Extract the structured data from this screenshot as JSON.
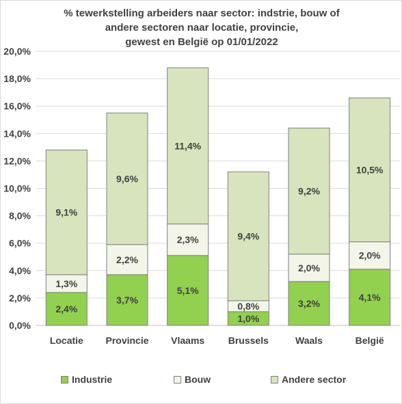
{
  "chart_data": {
    "type": "bar",
    "stacked": true,
    "title_lines": [
      "% tewerkstelling arbeiders naar sector: indstrie, bouw of",
      "andere sectoren naar locatie, provincie,",
      "gewest en België op 01/01/2022"
    ],
    "categories": [
      "Locatie",
      "Provincie",
      "Vlaams",
      "Brussels",
      "Waals",
      "België"
    ],
    "series": [
      {
        "name": "Industrie",
        "values": [
          2.4,
          3.7,
          5.1,
          1.0,
          3.2,
          4.1
        ],
        "labels": [
          "2,4%",
          "3,7%",
          "5,1%",
          "1,0%",
          "3,2%",
          "4,1%"
        ],
        "color": "#92d050",
        "label_color": "#404040"
      },
      {
        "name": "Bouw",
        "values": [
          1.3,
          2.2,
          2.3,
          0.8,
          2.0,
          2.0
        ],
        "labels": [
          "1,3%",
          "2,2%",
          "2,3%",
          "0,8%",
          "2,0%",
          "2,0%"
        ],
        "color": "#f2f5e8",
        "label_color": "#404040"
      },
      {
        "name": "Andere sector",
        "values": [
          9.1,
          9.6,
          11.4,
          9.4,
          9.2,
          10.5
        ],
        "labels": [
          "9,1%",
          "9,6%",
          "11,4%",
          "9,4%",
          "9,2%",
          "10,5%"
        ],
        "color": "#d7e4bd",
        "label_color": "#404040"
      }
    ],
    "y_axis": {
      "min": 0,
      "max": 20,
      "step": 2,
      "tick_labels": [
        "0,0%",
        "2,0%",
        "4,0%",
        "6,0%",
        "8,0%",
        "10,0%",
        "12,0%",
        "14,0%",
        "16,0%",
        "18,0%",
        "20,0%"
      ]
    },
    "xlabel": "",
    "ylabel": "",
    "grid": true,
    "gridline_color": "#d9d9d9",
    "bar_border_color": "#7f7f7f",
    "legend_position": "bottom"
  }
}
